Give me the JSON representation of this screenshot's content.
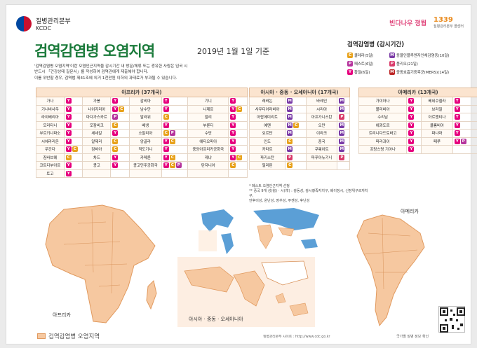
{
  "header": {
    "org": "질병관리본부",
    "org_en": "KCDC",
    "logo_text": "빈다나우 정뭡",
    "hotline": "1339",
    "hotline_sub": "질병관리본부 콜센터"
  },
  "title": "검역감염병 오염지역",
  "subtitle": "2019년 1월 1일 기준",
  "desc_lines": [
    "'검역감염병 오염지역'이란 오염인근지역을 감시기간 내 방문/체류 또는 경유한 사람은 입국 시",
    "반드시 「건강상태 질문서」를 작성하여 검역관에게 제출해야 합니다.",
    "이를 위반할 경우, 검역법 제41조에 의거 1천만원 이하의 과태료가 부과될 수 있습니다."
  ],
  "legend": {
    "title": "검역감염병 (감시기간)",
    "items": [
      {
        "code": "C",
        "cls": "c",
        "label": "콜레라(5일)"
      },
      {
        "code": "M",
        "cls": "m",
        "label": "동물인플루엔자인체감염증(10일)"
      },
      {
        "code": "P",
        "cls": "p",
        "label": "페스트(6일)"
      },
      {
        "code": "P",
        "cls": "w",
        "label": "폴리오(21일)"
      },
      {
        "code": "Y",
        "cls": "y",
        "label": "황열(6일)"
      },
      {
        "code": "M",
        "cls": "h",
        "label": "중동호흡기증후군(MERS)(14일)"
      }
    ]
  },
  "tables": {
    "africa": {
      "title": "아프리카 (37개국)",
      "rows": [
        [
          [
            "가나",
            [
              "y"
            ]
          ],
          [
            "가봉",
            [
              "y"
            ]
          ],
          [
            "감비아",
            [
              "y"
            ]
          ],
          [
            "기니",
            [
              "y"
            ]
          ]
        ],
        [
          [
            "기니비사우",
            [
              "y"
            ]
          ],
          [
            "나이지리아",
            [
              "y",
              "c"
            ]
          ],
          [
            "남수단",
            [
              "y"
            ]
          ],
          [
            "니제르",
            [
              "y",
              "c"
            ]
          ]
        ],
        [
          [
            "라이베리아",
            [
              "y"
            ]
          ],
          [
            "마다가스카르",
            [
              "p"
            ]
          ],
          [
            "말라위",
            [
              "c"
            ]
          ],
          [
            "말리",
            [
              "y"
            ]
          ]
        ],
        [
          [
            "모리타니",
            [
              "y"
            ]
          ],
          [
            "모잠비크",
            [
              "c"
            ]
          ],
          [
            "베냉",
            [
              "y"
            ]
          ],
          [
            "부룬디",
            [
              "y"
            ]
          ]
        ],
        [
          [
            "부르키나파소",
            [
              "y"
            ]
          ],
          [
            "세네갈",
            [
              "y"
            ]
          ],
          [
            "소말리아",
            [
              "c",
              "p"
            ]
          ],
          [
            "수단",
            [
              "y"
            ]
          ]
        ],
        [
          [
            "시에라리온",
            [
              "y"
            ]
          ],
          [
            "알제리",
            [
              "c"
            ]
          ],
          [
            "앙골라",
            [
              "y",
              "c"
            ]
          ],
          [
            "에티오피아",
            [
              "y"
            ]
          ]
        ],
        [
          [
            "우간다",
            [
              "y",
              "c"
            ]
          ],
          [
            "잠비아",
            [
              "c"
            ]
          ],
          [
            "적도기니",
            [
              "y"
            ]
          ],
          [
            "중앙아프리카공화국",
            [
              "y"
            ]
          ]
        ],
        [
          [
            "짐바브웨",
            [
              "c"
            ]
          ],
          [
            "차드",
            [
              "y"
            ]
          ],
          [
            "카메룬",
            [
              "y",
              "c"
            ]
          ],
          [
            "케냐",
            [
              "y",
              "c"
            ]
          ]
        ],
        [
          [
            "코트디부아르",
            [
              "y"
            ]
          ],
          [
            "콩고",
            [
              "y"
            ]
          ],
          [
            "콩고민주공화국",
            [
              "y",
              "c",
              "p"
            ]
          ],
          [
            "탄자니아",
            [
              "c"
            ]
          ]
        ],
        [
          [
            "토고",
            [
              "y"
            ]
          ],
          null,
          null,
          null
        ]
      ]
    },
    "asia": {
      "title": "아시아 · 중동 · 오세아니아 (17개국)",
      "rows": [
        [
          [
            "레바논",
            [
              "m"
            ]
          ],
          [
            "바레인",
            [
              "m"
            ]
          ]
        ],
        [
          [
            "사우디아라비아",
            [
              "m"
            ]
          ],
          [
            "시리아",
            [
              "m"
            ]
          ]
        ],
        [
          [
            "아랍에미리트",
            [
              "m"
            ]
          ],
          [
            "아프가니스탄",
            [
              "w"
            ]
          ]
        ],
        [
          [
            "예멘",
            [
              "m",
              "c"
            ]
          ],
          [
            "오만",
            [
              "m"
            ]
          ]
        ],
        [
          [
            "요르단",
            [
              "m"
            ]
          ],
          [
            "이라크",
            [
              "m"
            ]
          ]
        ],
        [
          [
            "인도",
            [
              "c"
            ]
          ],
          [
            "중국",
            [
              "m"
            ]
          ]
        ],
        [
          [
            "카타르",
            [
              "m"
            ]
          ],
          [
            "쿠웨이트",
            [
              "m"
            ]
          ]
        ],
        [
          [
            "파키스탄",
            [
              "w"
            ]
          ],
          [
            "파푸아뉴기니",
            [
              "w"
            ]
          ]
        ],
        [
          [
            "필리핀",
            [
              "c"
            ]
          ],
          null
        ]
      ]
    },
    "america": {
      "title": "아메리카 (13개국)",
      "rows": [
        [
          [
            "가이아나",
            [
              "y"
            ]
          ],
          [
            "베네수엘라",
            [
              "y"
            ]
          ]
        ],
        [
          [
            "볼리비아",
            [
              "y"
            ]
          ],
          [
            "브라질",
            [
              "y"
            ]
          ]
        ],
        [
          [
            "수리남",
            [
              "y"
            ]
          ],
          [
            "아르헨티나",
            [
              "y"
            ]
          ]
        ],
        [
          [
            "에콰도르",
            [
              "y"
            ]
          ],
          [
            "콜롬비아",
            [
              "y"
            ]
          ]
        ],
        [
          [
            "트리니다드토바고",
            [
              "y"
            ]
          ],
          [
            "파나마",
            [
              "y"
            ]
          ]
        ],
        [
          [
            "파라과이",
            [
              "y"
            ]
          ],
          [
            "페루",
            [
              "y",
              "p"
            ]
          ]
        ],
        [
          [
            "프랑스령 기아나",
            [
              "y"
            ]
          ],
          null
        ]
      ]
    }
  },
  "notes": [
    "* 폐스트 오염인근지역 선정",
    "** 중국 9개 성(省) · 시(市) : 광동성, 광시좡족자치구, 베이징시, 신장위구르자치구,",
    "안후이성, 윈난성, 장쑤성, 푸젠성, 후난성"
  ],
  "maps": {
    "africa": "아프리카",
    "asia": "아시아 · 중동 · 오세아니아",
    "america": "아메리카"
  },
  "footer": {
    "legend": "검역감염병 오염지역",
    "site": "질병관리본부 사이트 : http://www.cdc.go.kr",
    "qr_caption": "국가별 질병 정보 확인"
  },
  "colors": {
    "title": "#1a7a3a",
    "region_fill": "#f6c8a0",
    "region_stroke": "#e19a5f",
    "world_blue": "#5b9fd6"
  }
}
